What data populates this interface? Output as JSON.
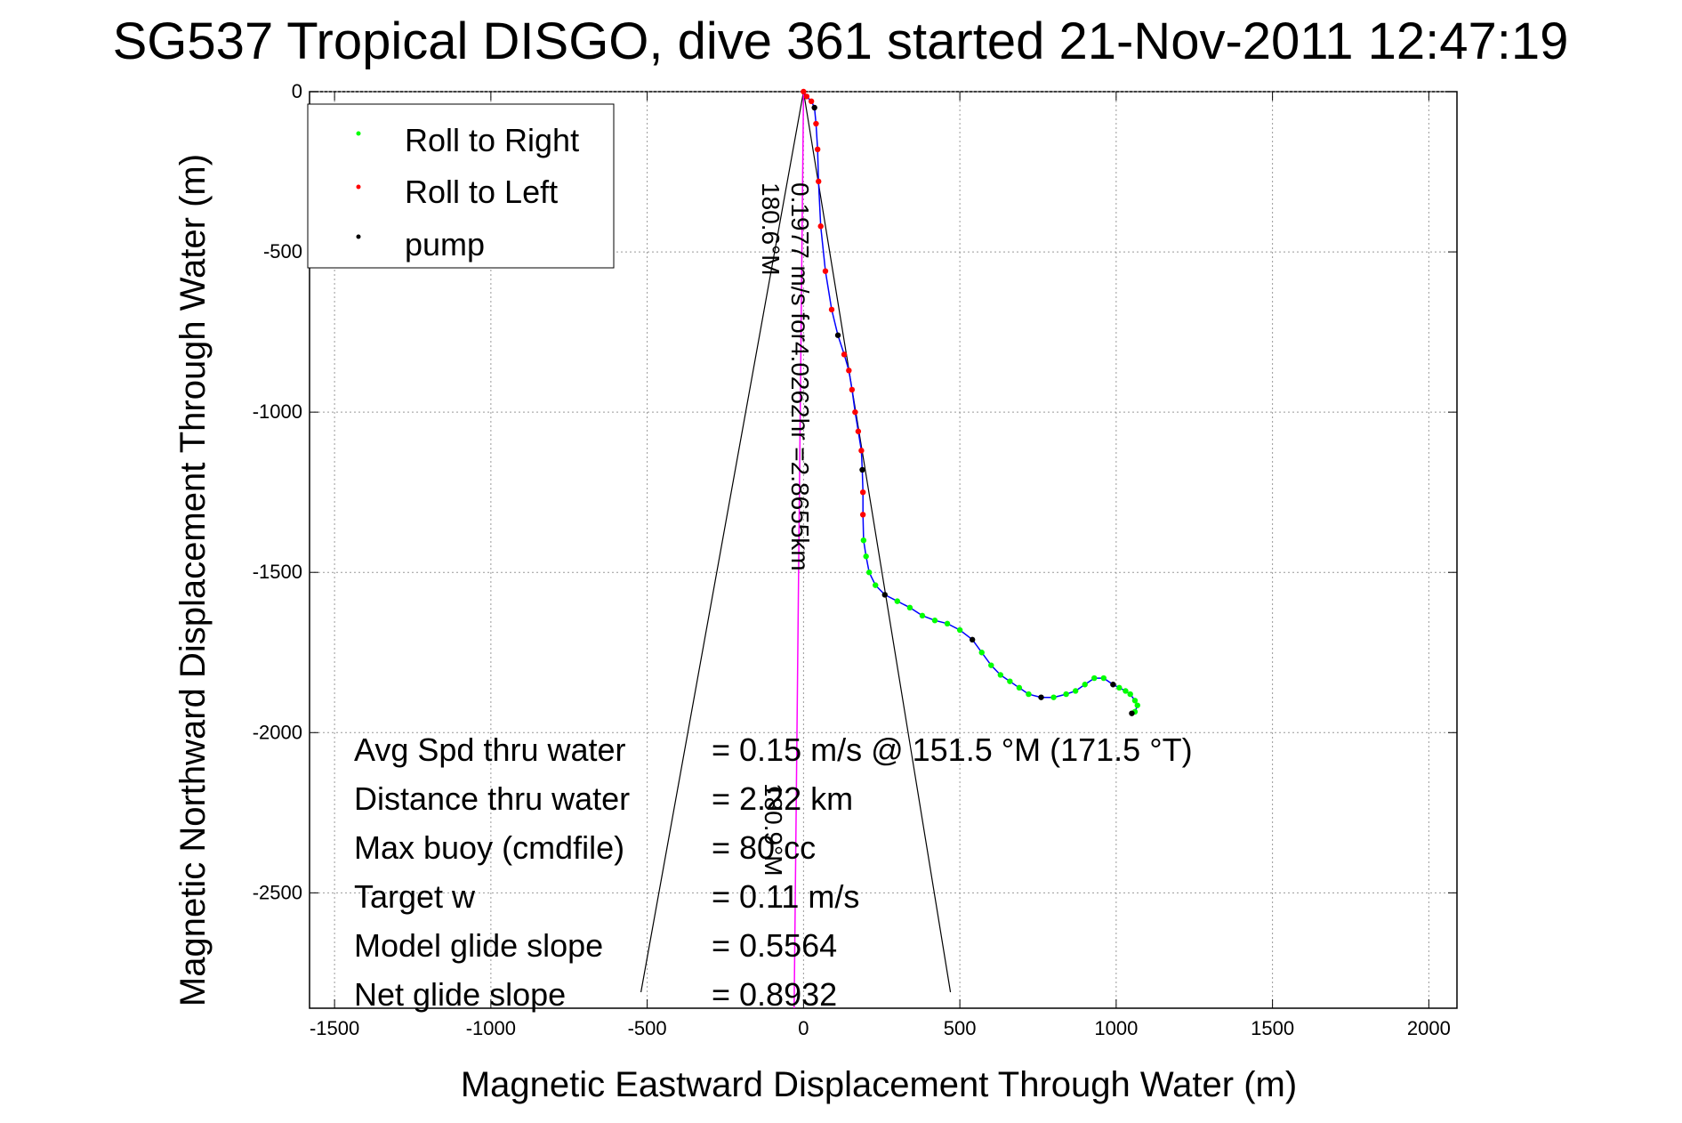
{
  "chart_data": {
    "type": "scatter",
    "title": "SG537 Tropical DISGO, dive 361 started 21-Nov-2011 12:47:19",
    "xlabel": "Magnetic Eastward Displacement Through Water (m)",
    "ylabel": "Magnetic Northward Displacement Through Water (m)",
    "xlim": [
      -1580,
      2090
    ],
    "ylim": [
      -2860,
      0
    ],
    "xticks": [
      -1500,
      -1000,
      -500,
      0,
      500,
      1000,
      1500,
      2000
    ],
    "yticks": [
      0,
      -500,
      -1000,
      -1500,
      -2000,
      -2500
    ],
    "grid": true,
    "legend_position": "top-left",
    "colors": {
      "track": "#0000ff",
      "roll_right": "#00ff00",
      "roll_left": "#ff0000",
      "pump": "#000000",
      "heading_line": "#ff00ff",
      "cone": "#000000"
    },
    "series": [
      {
        "name": "Roll to Right",
        "color": "#00ff00"
      },
      {
        "name": "Roll to Left",
        "color": "#ff0000"
      },
      {
        "name": "pump",
        "color": "#000000"
      }
    ],
    "track": [
      [
        0,
        0
      ],
      [
        10,
        -15
      ],
      [
        25,
        -30
      ],
      [
        35,
        -50
      ],
      [
        40,
        -100
      ],
      [
        45,
        -180
      ],
      [
        48,
        -280
      ],
      [
        55,
        -420
      ],
      [
        70,
        -560
      ],
      [
        90,
        -680
      ],
      [
        110,
        -760
      ],
      [
        130,
        -820
      ],
      [
        145,
        -870
      ],
      [
        155,
        -930
      ],
      [
        165,
        -1000
      ],
      [
        175,
        -1060
      ],
      [
        185,
        -1120
      ],
      [
        188,
        -1180
      ],
      [
        190,
        -1250
      ],
      [
        190,
        -1320
      ],
      [
        192,
        -1400
      ],
      [
        200,
        -1450
      ],
      [
        210,
        -1500
      ],
      [
        230,
        -1540
      ],
      [
        260,
        -1570
      ],
      [
        300,
        -1590
      ],
      [
        340,
        -1610
      ],
      [
        380,
        -1635
      ],
      [
        420,
        -1650
      ],
      [
        460,
        -1660
      ],
      [
        500,
        -1680
      ],
      [
        540,
        -1710
      ],
      [
        570,
        -1750
      ],
      [
        600,
        -1790
      ],
      [
        630,
        -1820
      ],
      [
        660,
        -1840
      ],
      [
        690,
        -1860
      ],
      [
        720,
        -1880
      ],
      [
        760,
        -1890
      ],
      [
        800,
        -1890
      ],
      [
        840,
        -1880
      ],
      [
        870,
        -1870
      ],
      [
        900,
        -1850
      ],
      [
        930,
        -1830
      ],
      [
        960,
        -1830
      ],
      [
        990,
        -1850
      ],
      [
        1010,
        -1860
      ],
      [
        1030,
        -1870
      ],
      [
        1045,
        -1880
      ],
      [
        1060,
        -1900
      ],
      [
        1068,
        -1915
      ],
      [
        1060,
        -1935
      ],
      [
        1050,
        -1940
      ]
    ],
    "heading_cone": {
      "apex": [
        0,
        0
      ],
      "left_end": [
        -520,
        -2810
      ],
      "right_end": [
        470,
        -2810
      ]
    },
    "heading_line": {
      "start": [
        0,
        0
      ],
      "end": [
        -30,
        -2860
      ]
    },
    "annotations": {
      "current": "0.1977 m/s for4.0262hr =2.8655km",
      "current_heading": "180.6°M",
      "glide_heading": "180.9°M"
    },
    "stats": [
      {
        "label": "Avg Spd thru water",
        "value": "=  0.15 m/s @ 151.5 °M (171.5 °T)"
      },
      {
        "label": "Distance thru water",
        "value": "= 2.22 km"
      },
      {
        "label": "Max buoy (cmdfile)",
        "value": "= 80 cc"
      },
      {
        "label": "Target w",
        "value": "= 0.11 m/s"
      },
      {
        "label": "Model glide slope",
        "value": "= 0.5564"
      },
      {
        "label": "Net glide slope",
        "value": "= 0.8932"
      }
    ]
  }
}
